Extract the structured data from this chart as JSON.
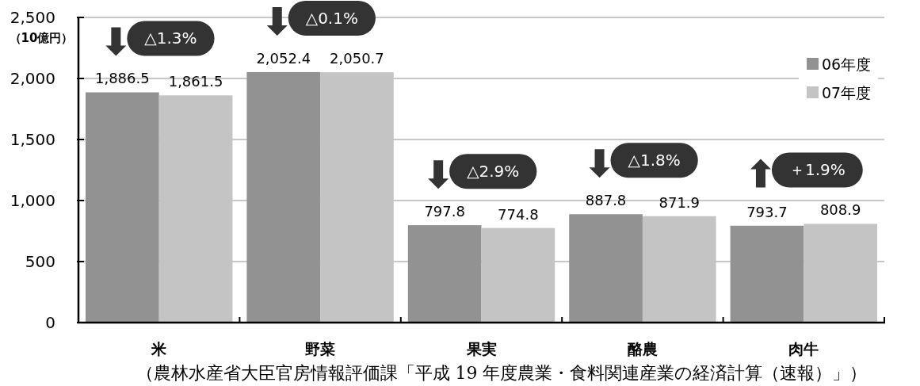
{
  "chart_data": {
    "type": "bar",
    "categories": [
      "米",
      "野菜",
      "果実",
      "酪農",
      "肉牛"
    ],
    "series": [
      {
        "name": "06年度",
        "color": "#929292",
        "values": [
          1886.5,
          2052.4,
          797.8,
          887.8,
          793.7
        ],
        "value_labels": [
          "1,886.5",
          "2,052.4",
          "797.8",
          "887.8",
          "793.7"
        ]
      },
      {
        "name": "07年度",
        "color": "#c4c4c4",
        "values": [
          1861.5,
          2050.7,
          774.8,
          871.9,
          808.9
        ],
        "value_labels": [
          "1,861.5",
          "2,050.7",
          "774.8",
          "871.9",
          "808.9"
        ]
      }
    ],
    "ylabel": "（10億円）",
    "ylim": [
      0,
      2500
    ],
    "yticks": [
      0,
      500,
      {
        "value": 1000,
        "label": "1,000"
      },
      {
        "value": 1500,
        "label": "1,500"
      },
      {
        "value": 2000,
        "label": "2,000"
      },
      {
        "value": 2500,
        "label": "2,500"
      }
    ],
    "grid": "y",
    "legend": "top right",
    "annotations": [
      "△1.3%",
      "△0.1%",
      "△2.9%",
      "△1.8%",
      "＋1.9%",
      "（農林水産省大臣官房情報評価課「平成 19 年度農業・食料関連産業の経済計算（速報）」）"
    ]
  }
}
